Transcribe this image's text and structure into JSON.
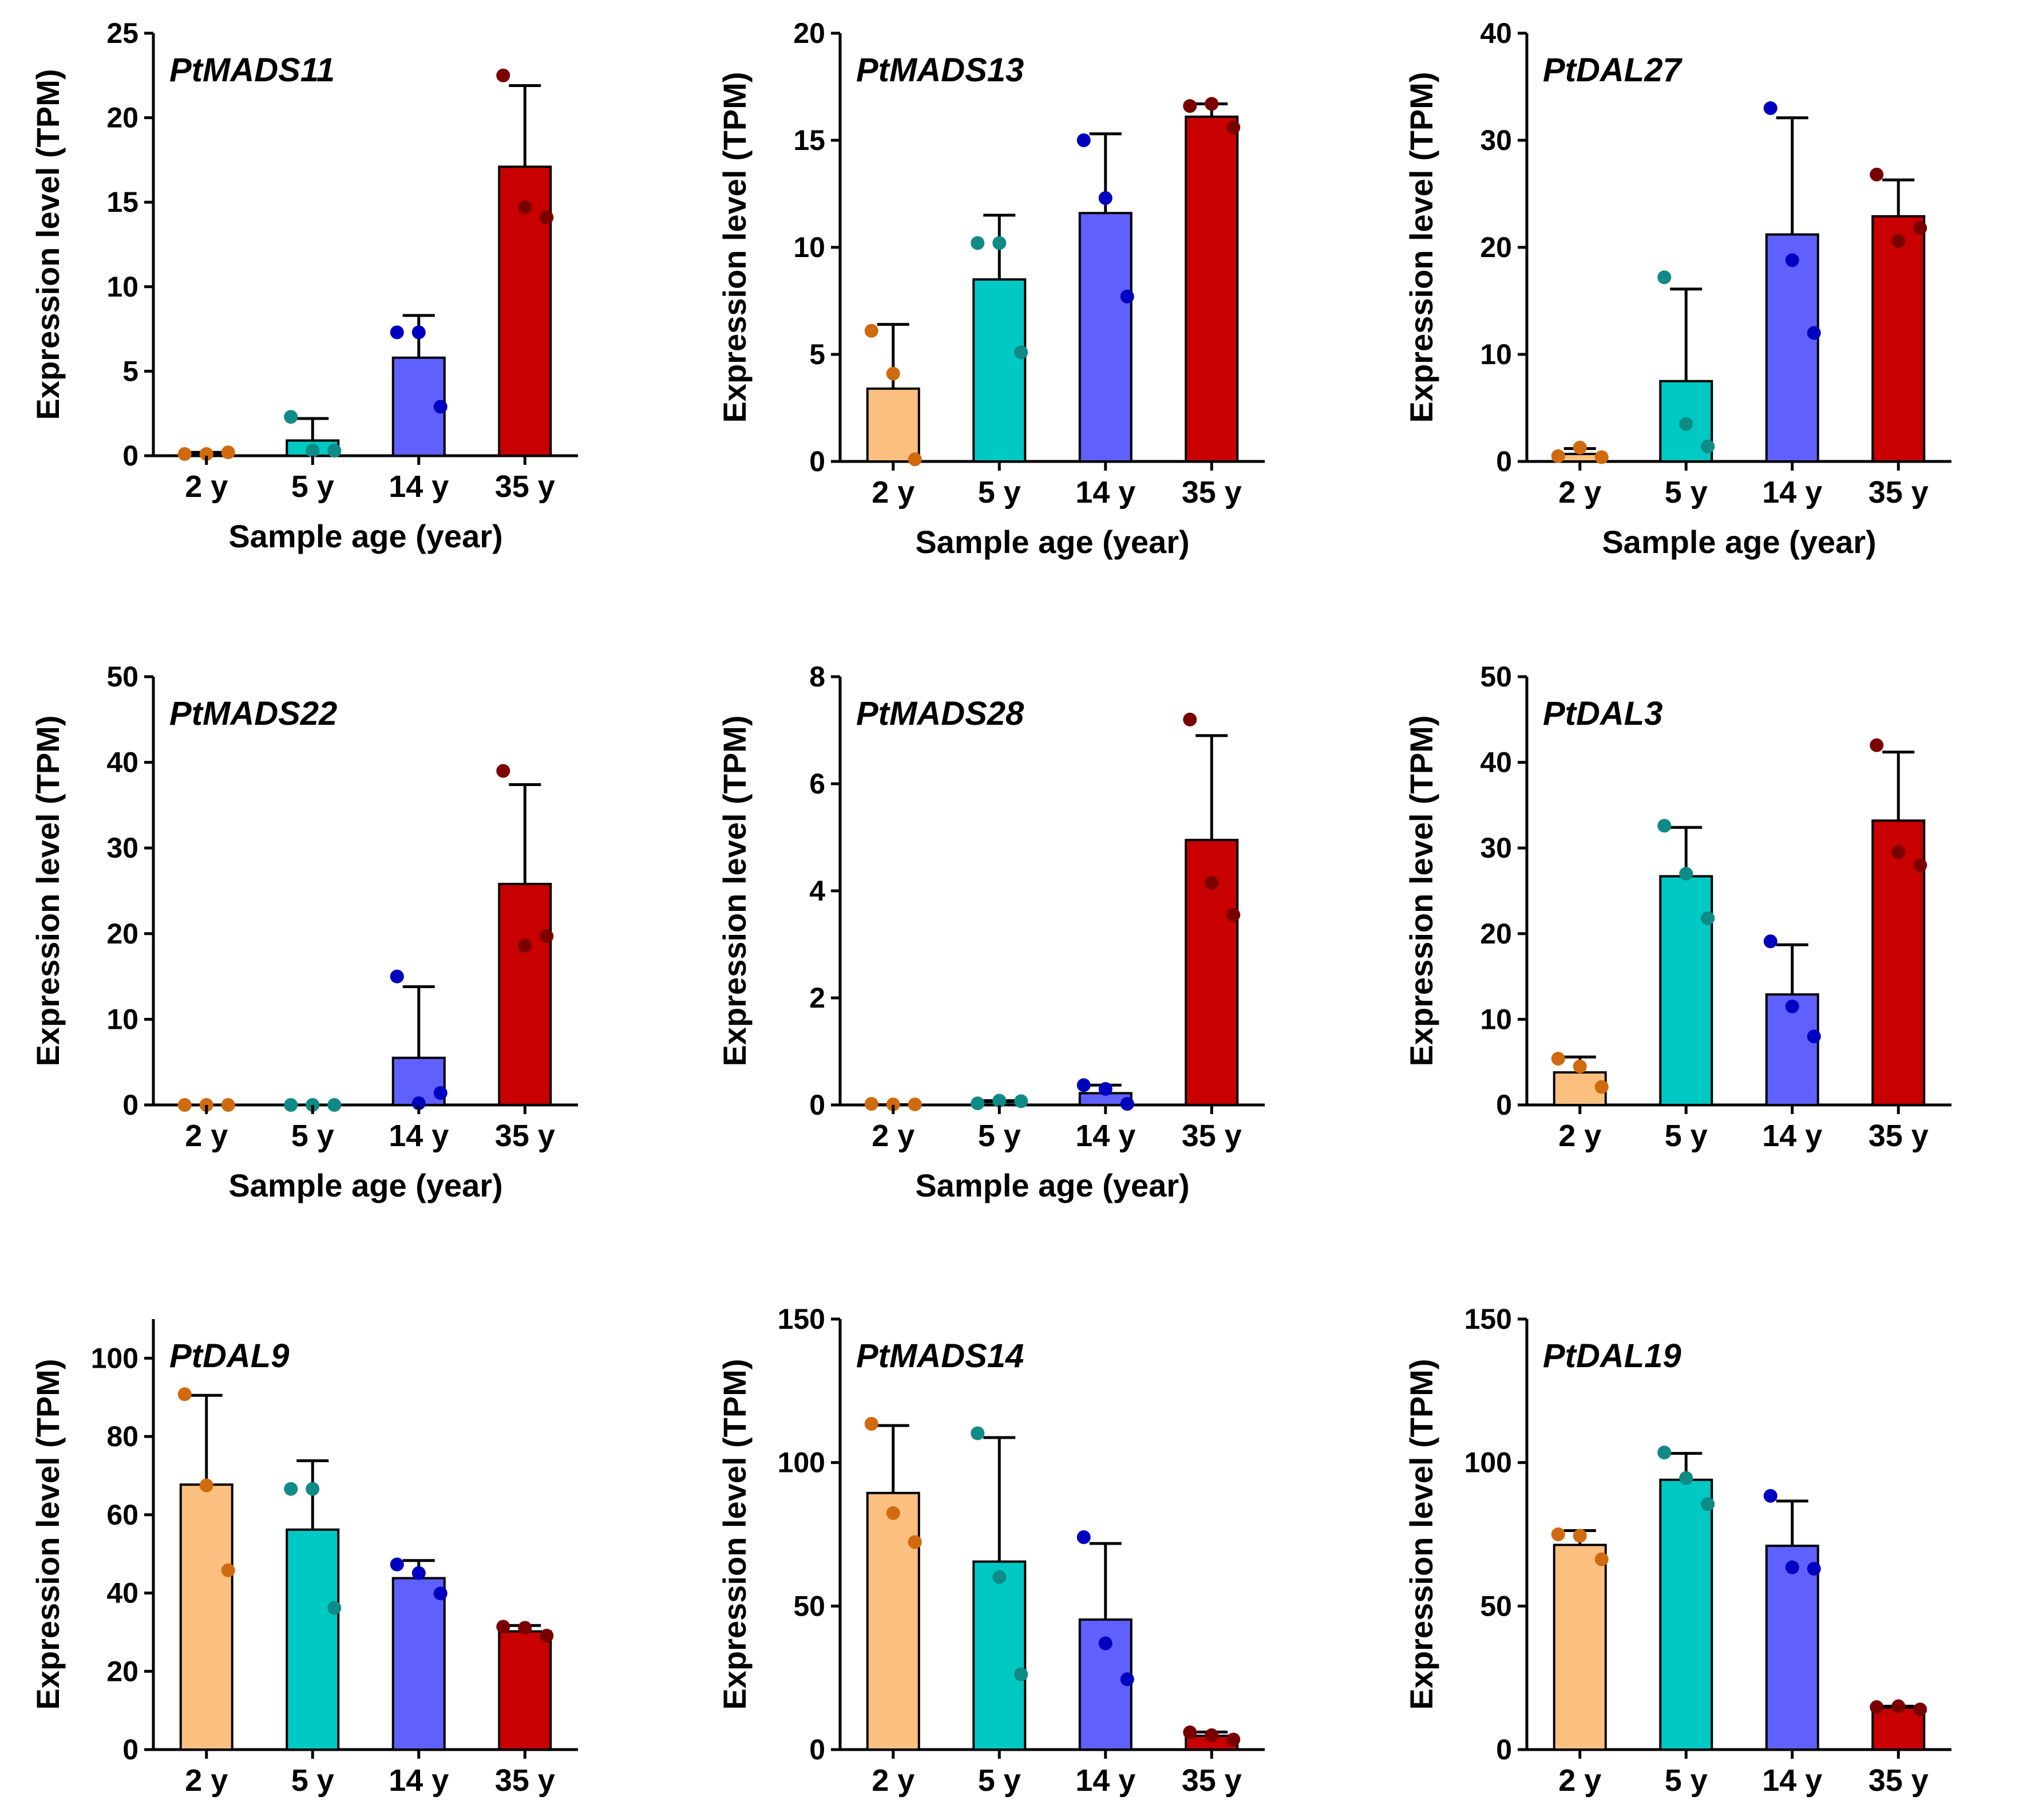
{
  "chart_data": [
    {
      "type": "bar",
      "title": "PtMADS11",
      "categories": [
        "2 y",
        "5 y",
        "14 y",
        "35 y"
      ],
      "values": [
        0.1,
        0.9,
        5.8,
        17.1
      ],
      "errors": [
        0.1,
        1.3,
        2.5,
        4.8
      ],
      "points": [
        [
          0.1,
          0.1,
          0.2
        ],
        [
          2.3,
          0.3,
          0.3
        ],
        [
          7.3,
          7.3,
          2.9
        ],
        [
          22.5,
          14.7,
          14.1
        ]
      ],
      "ylabel": "Expression level (TPM)",
      "xlabel": "Sample age (year)",
      "ylim": [
        0,
        25
      ],
      "yticks": [
        0,
        5,
        10,
        15,
        20,
        25
      ]
    },
    {
      "type": "bar",
      "title": "PtMADS13",
      "categories": [
        "2 y",
        "5 y",
        "14 y",
        "35 y"
      ],
      "values": [
        3.4,
        8.5,
        11.6,
        16.1
      ],
      "errors": [
        3.0,
        3.0,
        3.7,
        0.6
      ],
      "points": [
        [
          6.1,
          4.1,
          0.1
        ],
        [
          10.2,
          10.2,
          5.1
        ],
        [
          15.0,
          12.3,
          7.7
        ],
        [
          16.6,
          16.7,
          15.6
        ]
      ],
      "ylabel": "Expression level (TPM)",
      "xlabel": "Sample age (year)",
      "ylim": [
        0,
        20
      ],
      "yticks": [
        0,
        5,
        10,
        15,
        20
      ]
    },
    {
      "type": "bar",
      "title": "PtDAL27",
      "categories": [
        "2 y",
        "5 y",
        "14 y",
        "35 y"
      ],
      "values": [
        0.7,
        7.5,
        21.2,
        22.9
      ],
      "errors": [
        0.5,
        8.6,
        10.9,
        3.4
      ],
      "points": [
        [
          0.5,
          1.3,
          0.4
        ],
        [
          17.2,
          3.5,
          1.4
        ],
        [
          33.0,
          18.8,
          12.0
        ],
        [
          26.8,
          20.6,
          21.8
        ]
      ],
      "ylabel": "Expression level (TPM)",
      "xlabel": "Sample age (year)",
      "ylim": [
        0,
        40
      ],
      "yticks": [
        0,
        10,
        20,
        30,
        40
      ]
    },
    {
      "type": "bar",
      "title": "PtMADS22",
      "categories": [
        "2 y",
        "5 y",
        "14 y",
        "35 y"
      ],
      "values": [
        0.0,
        0.0,
        5.5,
        25.8
      ],
      "errors": [
        0.0,
        0.0,
        8.3,
        11.6
      ],
      "points": [
        [
          0.0,
          0.0,
          0.0
        ],
        [
          0.0,
          0.0,
          0.0
        ],
        [
          15.0,
          0.2,
          1.4
        ],
        [
          39.0,
          18.6,
          19.7
        ]
      ],
      "ylabel": "Expression level (TPM)",
      "xlabel": "Sample age (year)",
      "ylim": [
        0,
        50
      ],
      "yticks": [
        0,
        10,
        20,
        30,
        40,
        50
      ]
    },
    {
      "type": "bar",
      "title": "PtMADS28",
      "categories": [
        "2 y",
        "5 y",
        "14 y",
        "35 y"
      ],
      "values": [
        0.01,
        0.05,
        0.22,
        4.95
      ],
      "errors": [
        0.0,
        0.03,
        0.15,
        1.95
      ],
      "points": [
        [
          0.02,
          0.01,
          0.01
        ],
        [
          0.03,
          0.08,
          0.07
        ],
        [
          0.37,
          0.3,
          0.02
        ],
        [
          7.2,
          4.15,
          3.55
        ]
      ],
      "ylabel": "Expression level (TPM)",
      "xlabel": "Sample age (year)",
      "ylim": [
        0,
        8
      ],
      "yticks": [
        0,
        2,
        4,
        6,
        8
      ]
    },
    {
      "type": "bar",
      "title": "PtDAL3",
      "categories": [
        "2 y",
        "5 y",
        "14 y",
        "35 y"
      ],
      "values": [
        3.8,
        26.7,
        12.9,
        33.2
      ],
      "errors": [
        1.8,
        5.7,
        5.8,
        8.0
      ],
      "points": [
        [
          5.4,
          4.5,
          2.1
        ],
        [
          32.6,
          27.0,
          21.8
        ],
        [
          19.1,
          11.5,
          8.0
        ],
        [
          42.0,
          29.5,
          28.0
        ]
      ],
      "ylabel": "Expression level (TPM)",
      "ylim": [
        0,
        50
      ],
      "yticks": [
        0,
        10,
        20,
        30,
        40,
        50
      ]
    },
    {
      "type": "bar",
      "title": "PtDAL9",
      "categories": [
        "2 y",
        "5 y",
        "14 y",
        "35 y"
      ],
      "values": [
        67.7,
        56.2,
        43.8,
        30.2
      ],
      "errors": [
        22.8,
        17.6,
        4.5,
        1.5
      ],
      "points": [
        [
          90.8,
          67.5,
          45.8
        ],
        [
          66.6,
          66.6,
          36.2
        ],
        [
          47.3,
          45.1,
          39.9
        ],
        [
          31.4,
          31.1,
          29.1
        ]
      ],
      "ylabel": "Expression level (TPM)",
      "ylim": [
        0,
        110
      ],
      "yticks": [
        0,
        20,
        40,
        60,
        80,
        100
      ]
    },
    {
      "type": "bar",
      "title": "PtMADS14",
      "categories": [
        "2 y",
        "5 y",
        "14 y",
        "35 y"
      ],
      "values": [
        89.4,
        65.5,
        45.3,
        4.8
      ],
      "errors": [
        23.5,
        43.2,
        26.5,
        1.3
      ],
      "points": [
        [
          113.5,
          82.4,
          72.3
        ],
        [
          110.2,
          60.1,
          26.2
        ],
        [
          74.0,
          37.0,
          24.5
        ],
        [
          6.0,
          5.0,
          3.5
        ]
      ],
      "ylabel": "Expression level (TPM)",
      "ylim": [
        0,
        150
      ],
      "yticks": [
        0,
        50,
        100,
        150
      ]
    },
    {
      "type": "bar",
      "title": "PtDAL19",
      "categories": [
        "2 y",
        "5 y",
        "14 y",
        "35 y"
      ],
      "values": [
        71.3,
        94.0,
        71.0,
        14.6
      ],
      "errors": [
        5.0,
        9.2,
        15.6,
        0.5
      ],
      "points": [
        [
          75.0,
          74.5,
          66.3
        ],
        [
          103.5,
          94.6,
          85.5
        ],
        [
          88.4,
          63.5,
          63.0
        ],
        [
          14.8,
          15.1,
          14.0
        ]
      ],
      "ylabel": "Expression level (TPM)",
      "ylim": [
        0,
        150
      ],
      "yticks": [
        0,
        50,
        100,
        150
      ]
    }
  ],
  "colors": {
    "bars": [
      "#FBC080",
      "#00C8C3",
      "#6060FF",
      "#C80000"
    ],
    "points": [
      "#D06A0E",
      "#0F8A86",
      "#0000C0",
      "#7A0000"
    ],
    "axis": "#000000"
  }
}
